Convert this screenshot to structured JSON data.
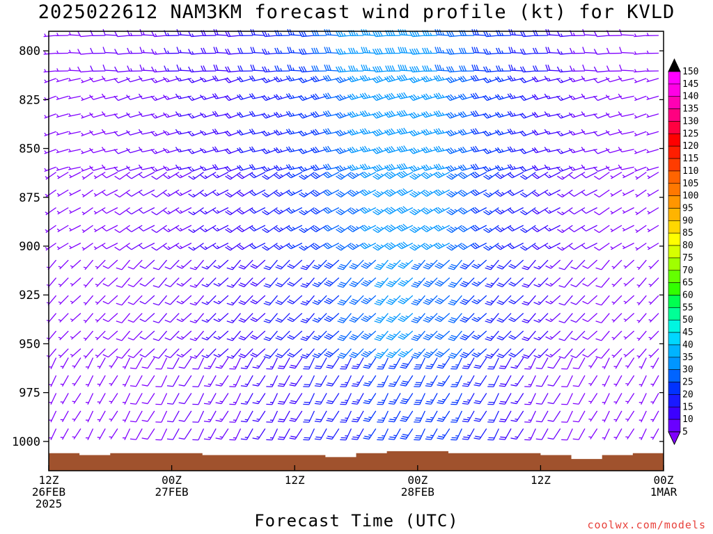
{
  "page": {
    "title": "2025022612 NAM3KM forecast wind profile (kt) for KVLD",
    "credit": "coolwx.com/models"
  },
  "chart_data": {
    "type": "wind_barb_time_height",
    "title": "2025022612 NAM3KM forecast wind profile (kt) for KVLD",
    "xlabel": "Forecast Time (UTC)",
    "ylabel": "",
    "y_ticks": [
      800,
      825,
      850,
      875,
      900,
      925,
      950,
      975,
      1000
    ],
    "ylim": [
      790,
      1015
    ],
    "x_ticks": [
      {
        "hour": 0,
        "lines": [
          "12Z",
          "26FEB",
          "2025"
        ]
      },
      {
        "hour": 12,
        "lines": [
          "00Z",
          "27FEB"
        ]
      },
      {
        "hour": 24,
        "lines": [
          "12Z"
        ]
      },
      {
        "hour": 36,
        "lines": [
          "00Z",
          "28FEB"
        ]
      },
      {
        "hour": 48,
        "lines": [
          "12Z"
        ]
      },
      {
        "hour": 60,
        "lines": [
          "00Z",
          "1MAR"
        ]
      }
    ],
    "xlim": [
      0,
      60
    ],
    "colorbar": {
      "units": "kt",
      "levels": [
        5,
        10,
        15,
        20,
        25,
        30,
        35,
        40,
        45,
        50,
        55,
        60,
        65,
        70,
        75,
        80,
        85,
        90,
        95,
        100,
        105,
        110,
        115,
        120,
        125,
        130,
        135,
        140,
        145,
        150
      ],
      "colors": [
        "#8000ff",
        "#6a00ff",
        "#3c00ff",
        "#1a1aff",
        "#0032ff",
        "#0064ff",
        "#0096ff",
        "#00b4ff",
        "#00d7ff",
        "#00f5e1",
        "#00ff96",
        "#00ff50",
        "#32ff00",
        "#64ff00",
        "#a0ff00",
        "#d7ff00",
        "#ffff00",
        "#ffd700",
        "#ffb400",
        "#ff9600",
        "#ff7800",
        "#ff6400",
        "#ff3c00",
        "#ff1e00",
        "#ff0000",
        "#ff0040",
        "#ff0080",
        "#ff00b4",
        "#ff00e6",
        "#ff00ff"
      ],
      "bg": "#d9d9d9"
    },
    "surface_pressure": [
      {
        "hour": 0,
        "p": 1006
      },
      {
        "hour": 3,
        "p": 1007
      },
      {
        "hour": 6,
        "p": 1006
      },
      {
        "hour": 9,
        "p": 1006
      },
      {
        "hour": 12,
        "p": 1006
      },
      {
        "hour": 15,
        "p": 1007
      },
      {
        "hour": 18,
        "p": 1007
      },
      {
        "hour": 21,
        "p": 1007
      },
      {
        "hour": 24,
        "p": 1007
      },
      {
        "hour": 27,
        "p": 1008
      },
      {
        "hour": 30,
        "p": 1006
      },
      {
        "hour": 33,
        "p": 1005
      },
      {
        "hour": 36,
        "p": 1005
      },
      {
        "hour": 39,
        "p": 1006
      },
      {
        "hour": 42,
        "p": 1006
      },
      {
        "hour": 45,
        "p": 1006
      },
      {
        "hour": 48,
        "p": 1007
      },
      {
        "hour": 51,
        "p": 1009
      },
      {
        "hour": 54,
        "p": 1007
      },
      {
        "hour": 57,
        "p": 1006
      },
      {
        "hour": 60,
        "p": 1006
      }
    ],
    "ground_color": "#a0522d",
    "barb_rows": [
      {
        "p_top": 790,
        "p_bot": 812,
        "dir": 265,
        "speeds": [
          5,
          5,
          7,
          8,
          10,
          12,
          12,
          13,
          14,
          14,
          15,
          16,
          17,
          18,
          18,
          19,
          21,
          22,
          23,
          25,
          27,
          28,
          30,
          32,
          35,
          36,
          37,
          38,
          38,
          38,
          38,
          36,
          34,
          32,
          30,
          28,
          27,
          25,
          23,
          21,
          20,
          18,
          16,
          14,
          12,
          10,
          9,
          8,
          7,
          6
        ]
      },
      {
        "p_top": 812,
        "p_bot": 860,
        "dir": 250,
        "speeds": [
          4,
          5,
          6,
          7,
          8,
          9,
          10,
          11,
          12,
          13,
          14,
          15,
          16,
          17,
          18,
          19,
          20,
          22,
          23,
          24,
          25,
          27,
          29,
          31,
          33,
          35,
          36,
          38,
          38,
          38,
          37,
          36,
          35,
          33,
          31,
          29,
          27,
          25,
          23,
          21,
          19,
          17,
          15,
          13,
          11,
          10,
          9,
          8,
          7,
          6
        ]
      },
      {
        "p_top": 860,
        "p_bot": 905,
        "dir": 235,
        "speeds": [
          3,
          4,
          5,
          6,
          7,
          8,
          9,
          10,
          11,
          12,
          13,
          14,
          15,
          16,
          17,
          18,
          19,
          21,
          22,
          23,
          25,
          26,
          28,
          30,
          32,
          34,
          35,
          37,
          38,
          38,
          37,
          36,
          35,
          33,
          31,
          29,
          27,
          24,
          22,
          20,
          18,
          16,
          14,
          12,
          10,
          8,
          7,
          6,
          5,
          4
        ]
      },
      {
        "p_top": 905,
        "p_bot": 955,
        "dir": 220,
        "speeds": [
          3,
          4,
          5,
          6,
          7,
          8,
          8,
          9,
          10,
          11,
          12,
          13,
          14,
          15,
          16,
          17,
          18,
          19,
          20,
          21,
          22,
          24,
          26,
          28,
          30,
          32,
          33,
          35,
          35,
          35,
          34,
          33,
          32,
          30,
          28,
          26,
          24,
          22,
          20,
          18,
          16,
          14,
          12,
          10,
          9,
          8,
          7,
          6,
          5,
          4
        ]
      },
      {
        "p_top": 955,
        "p_bot": 1003,
        "dir": 205,
        "speeds": [
          3,
          3,
          4,
          5,
          6,
          6,
          7,
          8,
          8,
          9,
          10,
          11,
          12,
          13,
          13,
          14,
          15,
          16,
          17,
          18,
          19,
          20,
          21,
          22,
          23,
          24,
          25,
          26,
          27,
          28,
          28,
          27,
          26,
          25,
          24,
          22,
          20,
          18,
          16,
          14,
          12,
          10,
          9,
          8,
          7,
          6,
          5,
          4,
          3,
          3
        ]
      }
    ]
  }
}
